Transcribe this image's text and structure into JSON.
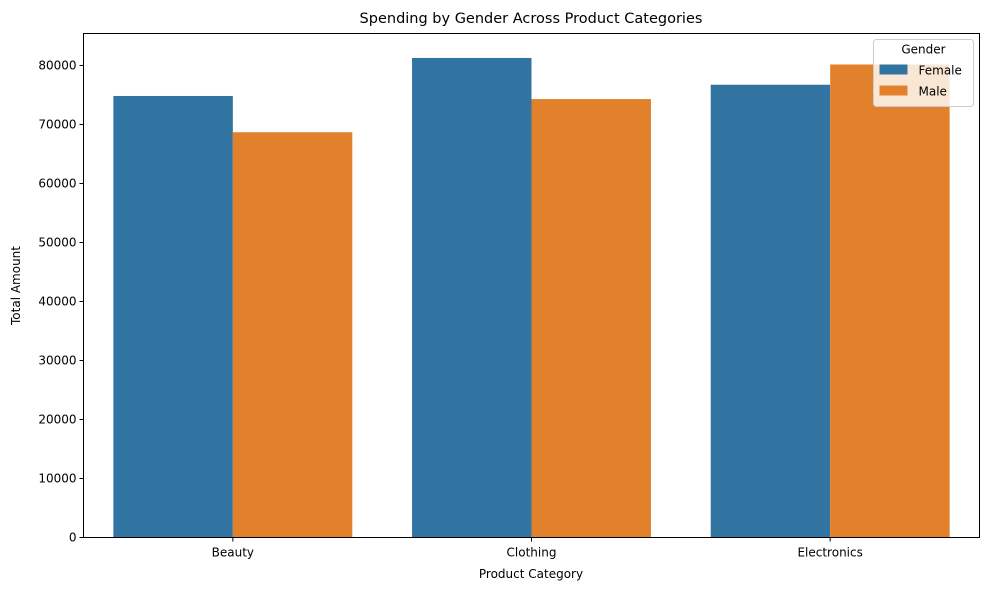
{
  "chart_data": {
    "type": "bar",
    "title": "Spending by Gender Across Product Categories",
    "xlabel": "Product Category",
    "ylabel": "Total Amount",
    "categories": [
      "Beauty",
      "Clothing",
      "Electronics"
    ],
    "series": [
      {
        "name": "Female",
        "color": "#3274a1",
        "values": [
          74830,
          81275,
          76735
        ]
      },
      {
        "name": "Male",
        "color": "#e1812c",
        "values": [
          68685,
          74305,
          80170
        ]
      }
    ],
    "ylim": [
      0,
      85420
    ],
    "yticks": [
      0,
      10000,
      20000,
      30000,
      40000,
      50000,
      60000,
      70000,
      80000
    ],
    "grid": false,
    "legend": {
      "title": "Gender",
      "position": "upper-right"
    }
  }
}
